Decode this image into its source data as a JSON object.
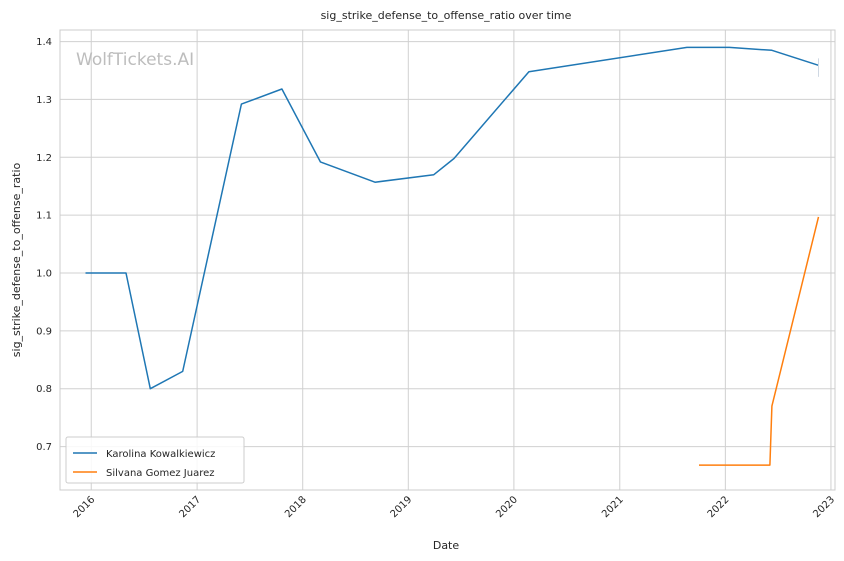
{
  "chart_data": {
    "type": "line",
    "title": "sig_strike_defense_to_offense_ratio over time",
    "xlabel": "Date",
    "ylabel": "sig_strike_defense_to_offense_ratio",
    "watermark": "WolfTickets.AI",
    "xlim": [
      "2015-09-15",
      "2023-01-15"
    ],
    "ylim": [
      0.625,
      1.42
    ],
    "x_ticks": [
      "2016",
      "2017",
      "2018",
      "2019",
      "2020",
      "2021",
      "2022",
      "2023"
    ],
    "y_ticks": [
      "0.7",
      "0.8",
      "0.9",
      "1.0",
      "1.1",
      "1.2",
      "1.3",
      "1.4"
    ],
    "grid": true,
    "legend_position": "bottom-left",
    "series": [
      {
        "name": "Karolina Kowalkiewicz",
        "color": "#1f77b4",
        "points": [
          {
            "x": "2015-12-12",
            "y": 1.0
          },
          {
            "x": "2016-04-30",
            "y": 1.0
          },
          {
            "x": "2016-07-23",
            "y": 0.8
          },
          {
            "x": "2016-11-12",
            "y": 0.83
          },
          {
            "x": "2017-06-03",
            "y": 1.292
          },
          {
            "x": "2017-10-21",
            "y": 1.318
          },
          {
            "x": "2018-03-03",
            "y": 1.192
          },
          {
            "x": "2018-09-08",
            "y": 1.157
          },
          {
            "x": "2019-03-30",
            "y": 1.17
          },
          {
            "x": "2019-06-08",
            "y": 1.198
          },
          {
            "x": "2020-02-22",
            "y": 1.348
          },
          {
            "x": "2021-08-21",
            "y": 1.39
          },
          {
            "x": "2022-01-15",
            "y": 1.39
          },
          {
            "x": "2022-06-11",
            "y": 1.385
          },
          {
            "x": "2022-11-19",
            "y": 1.359
          }
        ]
      },
      {
        "name": "Silvana Gomez Juarez",
        "color": "#ff7f0e",
        "points": [
          {
            "x": "2021-10-02",
            "y": 0.668
          },
          {
            "x": "2022-06-04",
            "y": 0.668
          },
          {
            "x": "2022-06-11",
            "y": 0.77
          },
          {
            "x": "2022-11-19",
            "y": 1.097
          }
        ]
      }
    ]
  }
}
